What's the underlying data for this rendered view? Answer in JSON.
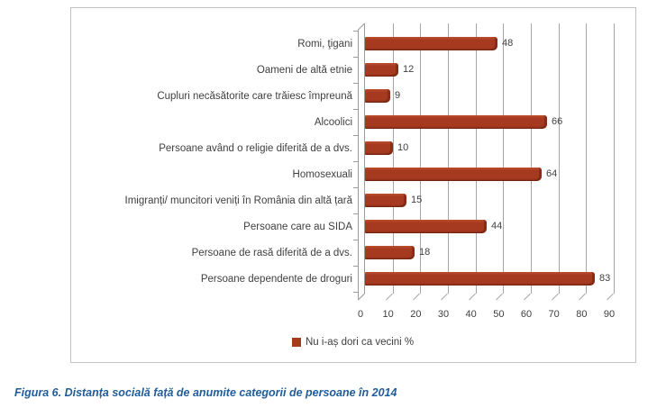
{
  "chart_data": {
    "type": "bar",
    "orientation": "horizontal",
    "title": "",
    "categories": [
      "Romi, ţigani",
      "Oameni de altă etnie",
      "Cupluri necăsătorite care trăiesc împreună",
      "Alcoolici",
      "Persoane având o religie diferită de a dvs.",
      "Homosexuali",
      "Imigranți/ muncitori veniți în România din altă țară",
      "Persoane care au SIDA",
      "Persoane de rasă diferită de a dvs.",
      "Persoane dependente de droguri"
    ],
    "values": [
      48,
      12,
      9,
      66,
      10,
      64,
      15,
      44,
      18,
      83
    ],
    "xlim": [
      0,
      90
    ],
    "xticks": [
      0,
      10,
      20,
      30,
      40,
      50,
      60,
      70,
      80,
      90
    ],
    "grid": true,
    "style": "3d-horizontal-bar",
    "legend": {
      "label": "Nu i-aș dori ca vecini %",
      "position": "bottom"
    },
    "colors": {
      "bar": "#A63A21",
      "grid": "#A6A6A6",
      "axis": "#9C9C9C",
      "text": "#3F3F3F",
      "frame_border": "#C3C3C3"
    }
  },
  "caption": {
    "text": "Figura 6. Distanța socială față de anumite categorii de persoane în 2014",
    "color": "#1F5C99"
  }
}
